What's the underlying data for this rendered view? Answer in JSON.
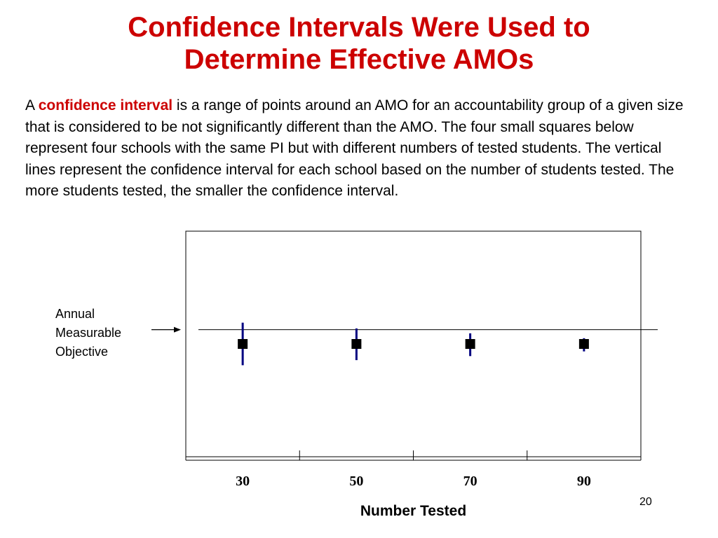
{
  "slide": {
    "title_line1": "Confidence Intervals Were Used to",
    "title_line2": "Determine Effective AMOs",
    "body_prefix": "A ",
    "body_highlight": "confidence interval",
    "body_rest": " is a range of points around an AMO for an accountability group of a given size that is considered to be not significantly different than the AMO. The four small squares below represent four schools with the same PI but with different numbers of tested students.  The vertical lines represent the confidence interval for each school based on the number of students tested.  The more students tested, the smaller the confidence interval.",
    "amo_label_lines": [
      "Annual",
      "Measurable",
      "Objective"
    ],
    "page_number": "20",
    "title_color": "#cc0000",
    "highlight_color": "#cc0000"
  },
  "chart_data": {
    "type": "scatter",
    "title": "",
    "xlabel": "Number Tested",
    "ylabel": "",
    "categories": [
      "30",
      "50",
      "70",
      "90"
    ],
    "schools": [
      {
        "n": "30",
        "pi": 0,
        "ci_upper": 1.0,
        "ci_lower": -1.0
      },
      {
        "n": "50",
        "pi": 0,
        "ci_upper": 0.73,
        "ci_lower": -0.76
      },
      {
        "n": "70",
        "pi": 0,
        "ci_upper": 0.5,
        "ci_lower": -0.57
      },
      {
        "n": "90",
        "pi": 0,
        "ci_upper": 0.27,
        "ci_lower": -0.35
      }
    ],
    "amo_line": 0.67,
    "ylim": [
      -5.3,
      5.3
    ],
    "grid": false,
    "marker_color": "#000000",
    "interval_color": "#000080",
    "line_color": "#000000"
  }
}
